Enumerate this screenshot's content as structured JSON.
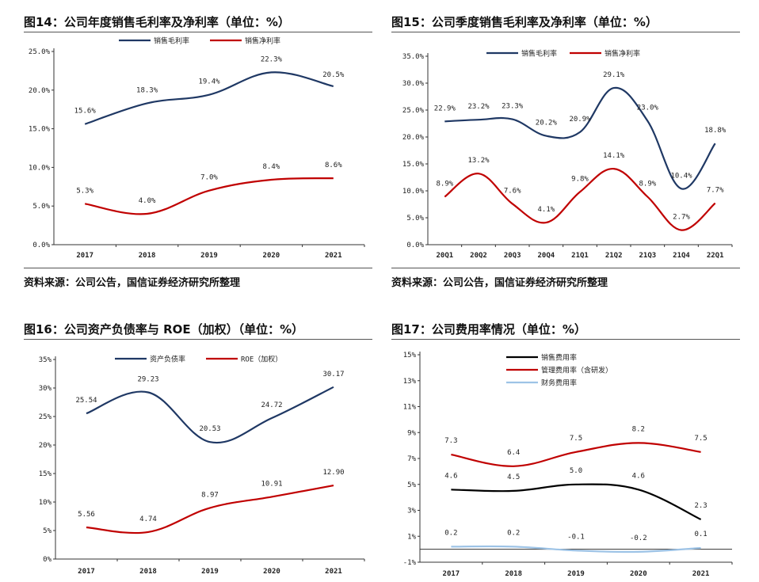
{
  "panels": [
    {
      "title": "图14：公司年度销售毛利率及净利率（单位：%）",
      "source": "资料来源：公司公告，国信证券经济研究所整理"
    },
    {
      "title": "图15：公司季度销售毛利率及净利率（单位：%）",
      "source": "资料来源：公司公告，国信证券经济研究所整理"
    },
    {
      "title": "图16：公司资产负债率与 ROE（加权）（单位：%）",
      "source": ""
    },
    {
      "title": "图17：公司费用率情况（单位：%）",
      "source": ""
    }
  ],
  "chart_data": [
    {
      "type": "line",
      "title": "图14：公司年度销售毛利率及净利率（单位：%）",
      "categories": [
        "2017",
        "2018",
        "2019",
        "2020",
        "2021"
      ],
      "ylim": [
        0,
        25
      ],
      "yticks": [
        0,
        5,
        10,
        15,
        20,
        25
      ],
      "ytick_labels": [
        "0.0%",
        "5.0%",
        "10.0%",
        "15.0%",
        "20.0%",
        "25.0%"
      ],
      "legend_position": "top",
      "series": [
        {
          "name": "销售毛利率",
          "color": "#1f3864",
          "values": [
            15.6,
            18.3,
            19.4,
            22.3,
            20.5
          ],
          "labels": [
            "15.6%",
            "18.3%",
            "19.4%",
            "22.3%",
            "20.5%"
          ]
        },
        {
          "name": "销售净利率",
          "color": "#c00000",
          "values": [
            5.3,
            4.0,
            7.0,
            8.4,
            8.6
          ],
          "labels": [
            "5.3%",
            "4.0%",
            "7.0%",
            "8.4%",
            "8.6%"
          ]
        }
      ]
    },
    {
      "type": "line",
      "title": "图15：公司季度销售毛利率及净利率（单位：%）",
      "categories": [
        "20Q1",
        "20Q2",
        "20Q3",
        "20Q4",
        "21Q1",
        "21Q2",
        "21Q3",
        "21Q4",
        "22Q1"
      ],
      "ylim": [
        0,
        35
      ],
      "yticks": [
        0,
        5,
        10,
        15,
        20,
        25,
        30,
        35
      ],
      "ytick_labels": [
        "0.0%",
        "5.0%",
        "10.0%",
        "15.0%",
        "20.0%",
        "25.0%",
        "30.0%",
        "35.0%"
      ],
      "legend_position": "top",
      "series": [
        {
          "name": "销售毛利率",
          "color": "#1f3864",
          "values": [
            22.9,
            23.2,
            23.3,
            20.2,
            20.9,
            29.1,
            23.0,
            10.4,
            18.8
          ],
          "labels": [
            "22.9%",
            "23.2%",
            "23.3%",
            "20.2%",
            "20.9%",
            "29.1%",
            "23.0%",
            "10.4%",
            "18.8%"
          ]
        },
        {
          "name": "销售净利率",
          "color": "#c00000",
          "values": [
            8.9,
            13.2,
            7.6,
            4.1,
            9.8,
            14.1,
            8.9,
            2.7,
            7.7
          ],
          "labels": [
            "8.9%",
            "13.2%",
            "7.6%",
            "4.1%",
            "9.8%",
            "14.1%",
            "8.9%",
            "2.7%",
            "7.7%"
          ]
        }
      ]
    },
    {
      "type": "line",
      "title": "图16：公司资产负债率与 ROE（加权）（单位：%）",
      "categories": [
        "2017",
        "2018",
        "2019",
        "2020",
        "2021"
      ],
      "ylim": [
        0,
        35
      ],
      "yticks": [
        0,
        5,
        10,
        15,
        20,
        25,
        30,
        35
      ],
      "ytick_labels": [
        "0%",
        "5%",
        "10%",
        "15%",
        "20%",
        "25%",
        "30%",
        "35%"
      ],
      "legend_position": "top",
      "series": [
        {
          "name": "资产负债率",
          "color": "#1f3864",
          "values": [
            25.54,
            29.23,
            20.53,
            24.72,
            30.17
          ],
          "labels": [
            "25.54",
            "29.23",
            "20.53",
            "24.72",
            "30.17"
          ]
        },
        {
          "name": "ROE（加权）",
          "color": "#c00000",
          "values": [
            5.56,
            4.74,
            8.97,
            10.91,
            12.9
          ],
          "labels": [
            "5.56",
            "4.74",
            "8.97",
            "10.91",
            "12.90"
          ]
        }
      ]
    },
    {
      "type": "line",
      "title": "图17：公司费用率情况（单位：%）",
      "categories": [
        "2017",
        "2018",
        "2019",
        "2020",
        "2021"
      ],
      "ylim": [
        -1,
        15
      ],
      "yticks": [
        -1,
        1,
        3,
        5,
        7,
        9,
        11,
        13,
        15
      ],
      "ytick_labels": [
        "-1%",
        "1%",
        "3%",
        "5%",
        "7%",
        "9%",
        "11%",
        "13%",
        "15%"
      ],
      "legend_position": "top-left",
      "series": [
        {
          "name": "销售费用率",
          "color": "#000000",
          "values": [
            4.6,
            4.5,
            5.0,
            4.6,
            2.3
          ],
          "labels": [
            "4.6",
            "4.5",
            "5.0",
            "4.6",
            "2.3"
          ]
        },
        {
          "name": "管理费用率（含研发）",
          "color": "#c00000",
          "values": [
            7.3,
            6.4,
            7.5,
            8.2,
            7.5
          ],
          "labels": [
            "7.3",
            "6.4",
            "7.5",
            "8.2",
            "7.5"
          ]
        },
        {
          "name": "财务费用率",
          "color": "#9dc3e6",
          "values": [
            0.2,
            0.2,
            -0.1,
            -0.2,
            0.1
          ],
          "labels": [
            "0.2",
            "0.2",
            "-0.1",
            "-0.2",
            "0.1"
          ]
        }
      ]
    }
  ]
}
